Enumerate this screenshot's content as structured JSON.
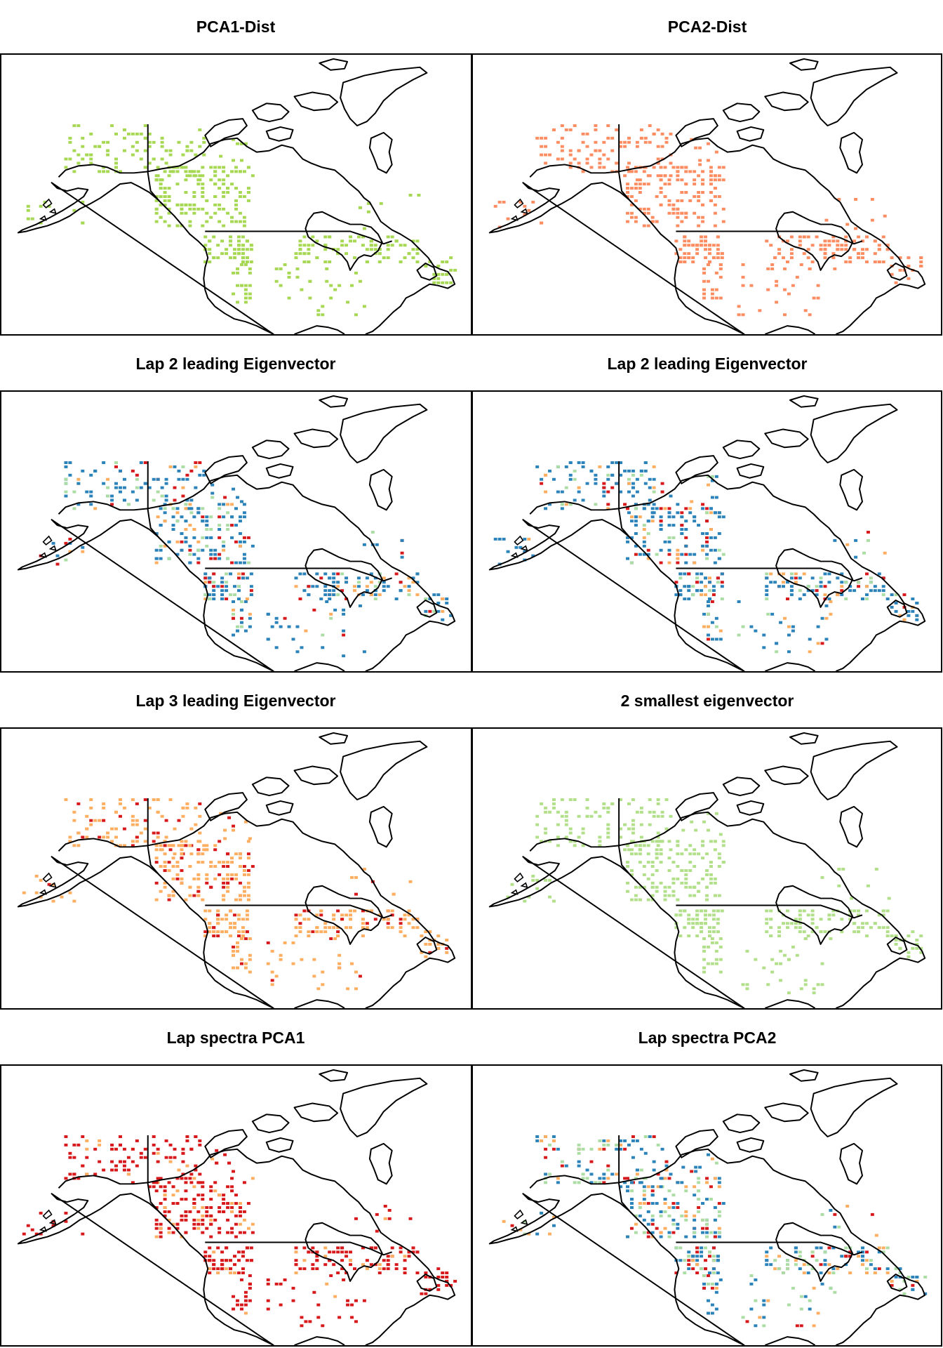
{
  "palette": {
    "green": "#a6d854",
    "salmon": "#fc8d62",
    "blue": "#2b83ba",
    "lightblue": "#abdda4",
    "orange": "#fdae61",
    "red": "#d7191c",
    "lightgreen": "#b2df8a"
  },
  "panels": [
    {
      "title": "PCA1-Dist",
      "colors": {
        "primary": "#a6d854"
      },
      "mix": [
        "primary"
      ]
    },
    {
      "title": "PCA2-Dist",
      "colors": {
        "primary": "#fc8d62"
      },
      "mix": [
        "primary"
      ]
    },
    {
      "title": "Lap 2 leading Eigenvector",
      "colors": {
        "primary": "#2b83ba",
        "mid": "#abdda4",
        "hot": "#d7191c",
        "warm": "#fdae61"
      },
      "mix": [
        "primary",
        "primary",
        "primary",
        "primary",
        "mid",
        "warm",
        "hot"
      ]
    },
    {
      "title": "Lap 2 leading Eigenvector",
      "colors": {
        "primary": "#2b83ba",
        "mid": "#abdda4",
        "hot": "#d7191c",
        "warm": "#fdae61"
      },
      "mix": [
        "primary",
        "primary",
        "primary",
        "primary",
        "primary",
        "mid",
        "warm",
        "hot"
      ]
    },
    {
      "title": "Lap 3 leading Eigenvector",
      "colors": {
        "primary": "#fdae61",
        "hot": "#d7191c"
      },
      "mix": [
        "primary",
        "primary",
        "primary",
        "primary",
        "hot"
      ]
    },
    {
      "title": "2 smallest eigenvector",
      "colors": {
        "primary": "#b2df8a"
      },
      "mix": [
        "primary"
      ]
    },
    {
      "title": "Lap spectra PCA1",
      "colors": {
        "primary": "#d7191c",
        "warm": "#fdae61"
      },
      "mix": [
        "primary",
        "primary",
        "primary",
        "primary",
        "primary",
        "primary",
        "warm"
      ]
    },
    {
      "title": "Lap spectra PCA2",
      "colors": {
        "primary": "#2b83ba",
        "mid": "#abdda4",
        "warm": "#fdae61",
        "hot": "#d7191c"
      },
      "mix": [
        "primary",
        "primary",
        "primary",
        "mid",
        "mid",
        "warm",
        "hot"
      ]
    }
  ]
}
